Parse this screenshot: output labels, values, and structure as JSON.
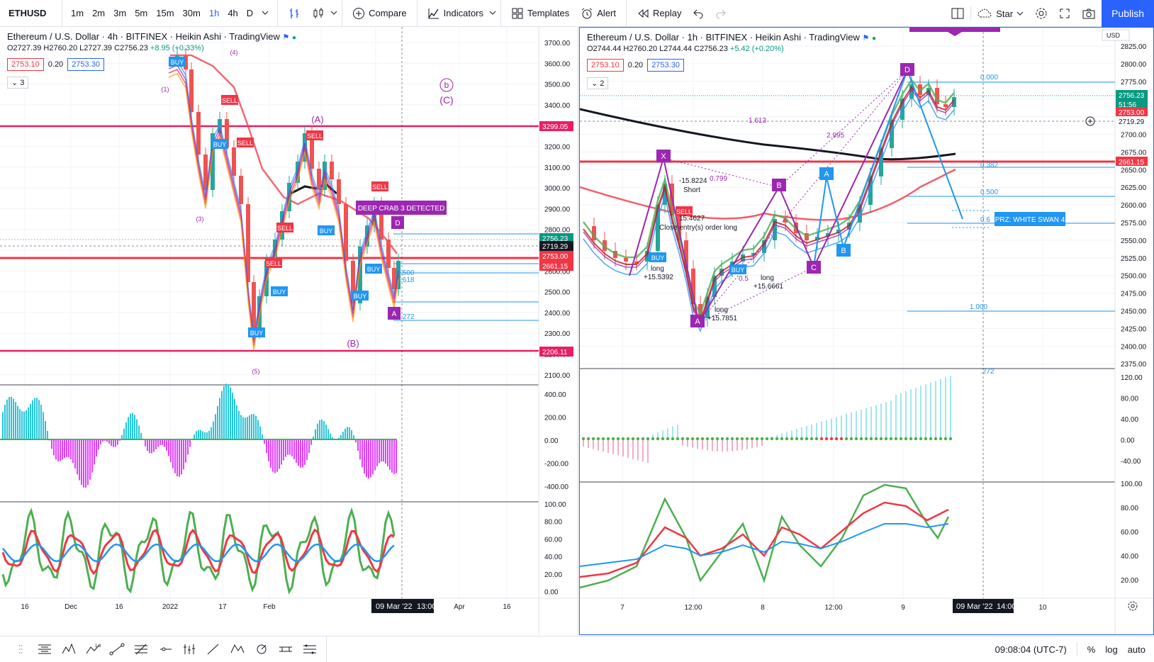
{
  "toolbar": {
    "symbol": "ETHUSD",
    "intervals": [
      "1m",
      "2m",
      "3m",
      "5m",
      "15m",
      "30m",
      "1h",
      "4h",
      "D"
    ],
    "active_interval": "1h",
    "compare": "Compare",
    "indicators": "Indicators",
    "templates": "Templates",
    "alert": "Alert",
    "replay": "Replay",
    "star": "Star",
    "publish": "Publish"
  },
  "left_chart": {
    "title": "Ethereum / U.S. Dollar · 4h · BITFINEX · Heikin Ashi · TradingView",
    "ohlc": {
      "o": "O2727.39",
      "h": "H2760.20",
      "l": "L2727.39",
      "c": "C2756.23",
      "chg": "+8.95 (+0.33%)"
    },
    "price_bid": "2753.10",
    "spread": "0.20",
    "price_ask": "2753.30",
    "indicator_count": "3",
    "price_axis": [
      "3700.00",
      "3600.00",
      "3500.00",
      "3400.00",
      "3300.00",
      "3200.00",
      "3100.00",
      "3000.00",
      "2900.00",
      "2800.00",
      "2700.00",
      "2600.00",
      "2500.00",
      "2400.00",
      "2300.00",
      "2200.00",
      "2100.00"
    ],
    "price_labels": [
      {
        "text": "3299.05",
        "color": "#e91e63"
      },
      {
        "text": "2756.23",
        "color": "#089981"
      },
      {
        "text": "2719.29",
        "color": "#131722"
      },
      {
        "text": "2753.00",
        "color": "#f23645"
      },
      {
        "text": "2661.15",
        "color": "#f23645"
      },
      {
        "text": "2206.11",
        "color": "#e91e63"
      }
    ],
    "macd_axis": [
      "400.00",
      "200.00",
      "0.00",
      "-200.00",
      "-400.00"
    ],
    "stoch_axis": [
      "100.00",
      "80.00",
      "60.00",
      "40.00",
      "20.00",
      "0.00"
    ],
    "time_axis": [
      "16",
      "Dec",
      "16",
      "2022",
      "17",
      "Feb",
      "14",
      "Apr",
      "16"
    ],
    "crosshair_date": "09 Mar '22",
    "crosshair_time": "13:00",
    "annotations": {
      "wave_b": "b",
      "wave_c": "(C)",
      "wave_a": "(A)",
      "wave_bb": "(B)",
      "wave_1": "(1)",
      "wave_3": "(3)",
      "wave_4": "(4)",
      "wave_5": "(5)",
      "crab_label": "DEEP CRAB 3 DETECTED",
      "point_d": "D",
      "point_a": "A",
      "buy": "BUY",
      "sell": "SELL",
      "fib_500": ".500",
      "fib_618": ".618",
      "fib_272": ".272"
    }
  },
  "right_chart": {
    "title": "Ethereum / U.S. Dollar · 1h · BITFINEX · Heikin Ashi · TradingView",
    "ohlc": {
      "o": "O2744.44",
      "h": "H2760.20",
      "l": "L2744.44",
      "c": "C2756.23",
      "chg": "+5.42 (+0.20%)"
    },
    "price_bid": "2753.10",
    "spread": "0.20",
    "price_ask": "2753.30",
    "indicator_count": "2",
    "currency": "USD",
    "price_axis": [
      "2825.00",
      "2800.00",
      "2775.00",
      "2750.00",
      "2725.00",
      "2700.00",
      "2675.00",
      "2650.00",
      "2625.00",
      "2600.00",
      "2575.00",
      "2550.00",
      "2525.00",
      "2500.00",
      "2475.00",
      "2450.00",
      "2425.00",
      "2400.00",
      "2375.00"
    ],
    "price_labels": [
      {
        "text": "2756.23",
        "color": "#089981"
      },
      {
        "text": "51:56",
        "color": "#089981"
      },
      {
        "text": "2753.00",
        "color": "#f23645"
      },
      {
        "text": "2719.29",
        "color": "#131722"
      },
      {
        "text": "2661.15",
        "color": "#f23645"
      }
    ],
    "macd_axis": [
      "120.00",
      "80.00",
      "40.00",
      "0.00",
      "-40.00"
    ],
    "stoch_axis": [
      "100.00",
      "80.00",
      "60.00",
      "40.00",
      "20.00"
    ],
    "time_axis": [
      "7",
      "12:00",
      "8",
      "12:00",
      "9",
      "10"
    ],
    "crosshair_date": "09 Mar '22",
    "crosshair_time": "14:00",
    "fib_levels": [
      "0.000",
      "0.382",
      "0.500",
      "0.6",
      "1.000",
      ".272"
    ],
    "annotations": {
      "x": "X",
      "a": "A",
      "b": "B",
      "c": "C",
      "d": "D",
      "a2": "A",
      "b2": "B",
      "r1613": "1.613",
      "r2995": "2.995",
      "r0799": "0.799",
      "r05": "0.5",
      "short_val": "-15.8224",
      "short": "Short",
      "sell_val": "15.4627",
      "close_entry": "Close entry(s) order long",
      "long1": "long",
      "long1_val": "+15.5392",
      "long2": "long",
      "long2_val": "+15.7851",
      "long3": "long",
      "long3_val": "+15.6661",
      "buy": "BUY",
      "sell": "SELL",
      "prz": "PRZ: WHITE SWAN 4"
    }
  },
  "bottombar": {
    "clock": "09:08:04 (UTC-7)",
    "percent": "%",
    "log": "log",
    "auto": "auto"
  }
}
